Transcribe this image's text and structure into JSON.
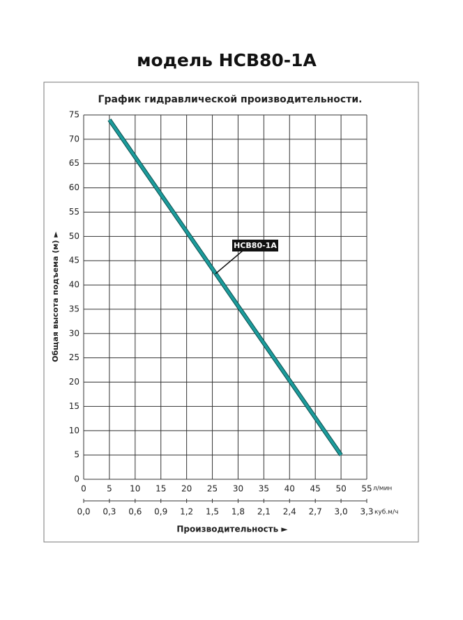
{
  "chart_data": {
    "type": "line",
    "title": "модель HCB80-1A",
    "subtitle": "График гидравлической производительности.",
    "xlabel": "Производительность ►",
    "ylabel": "Общая высота подъема (м) ►",
    "x_unit": "л/мин",
    "x2_unit": "куб.м/ч",
    "x": [
      5,
      50
    ],
    "series": [
      {
        "name": "HCB80-1A",
        "color": "#1c9c9c",
        "values": [
          74,
          5
        ]
      }
    ],
    "xlim": [
      0,
      55
    ],
    "xticks": [
      0,
      5,
      10,
      15,
      20,
      25,
      30,
      35,
      40,
      45,
      50,
      55
    ],
    "x2lim": [
      0,
      3.3
    ],
    "x2ticks": [
      {
        "value": 0,
        "label": "0,0"
      },
      {
        "value": 0.3,
        "label": "0,3"
      },
      {
        "value": 0.6,
        "label": "0,6"
      },
      {
        "value": 0.9,
        "label": "0,9"
      },
      {
        "value": 1.2,
        "label": "1,2"
      },
      {
        "value": 1.5,
        "label": "1,5"
      },
      {
        "value": 1.8,
        "label": "1,8"
      },
      {
        "value": 2.1,
        "label": "2,1"
      },
      {
        "value": 2.4,
        "label": "2,4"
      },
      {
        "value": 2.7,
        "label": "2,7"
      },
      {
        "value": 3.0,
        "label": "3,0"
      },
      {
        "value": 3.3,
        "label": "3,3"
      }
    ],
    "ylim": [
      0,
      75
    ],
    "yticks": [
      0,
      5,
      10,
      15,
      20,
      25,
      30,
      35,
      40,
      45,
      50,
      55,
      60,
      65,
      70,
      75
    ],
    "grid": true
  }
}
